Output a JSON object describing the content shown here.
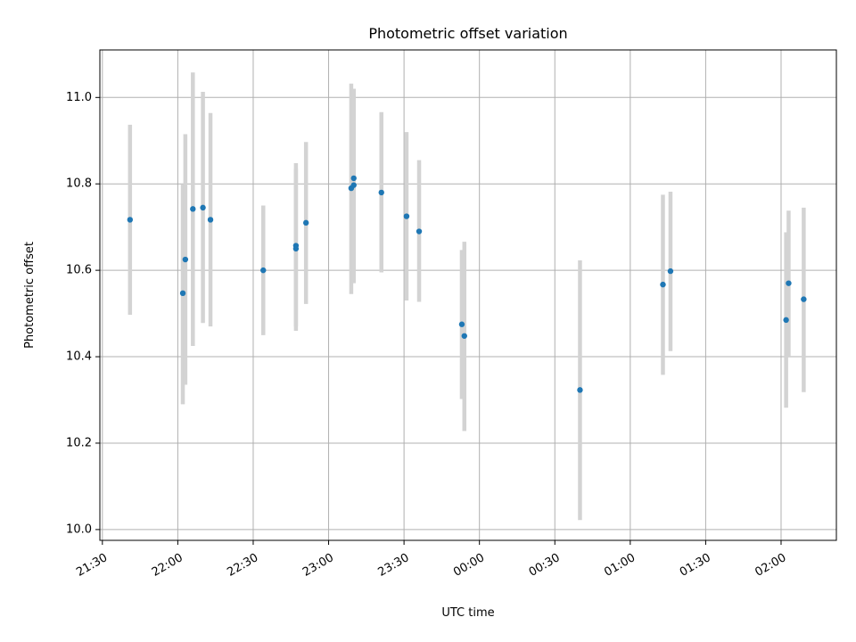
{
  "chart_data": {
    "type": "scatter",
    "title": "Photometric offset variation",
    "xlabel": "UTC time",
    "ylabel": "Photometric offset",
    "x_ticks": [
      "21:30",
      "22:00",
      "22:30",
      "23:00",
      "23:30",
      "00:00",
      "00:30",
      "01:00",
      "01:30",
      "02:00"
    ],
    "x_tick_minutes": [
      0,
      30,
      60,
      90,
      120,
      150,
      180,
      210,
      240,
      270
    ],
    "xlim": [
      -1,
      292
    ],
    "y_ticks": [
      "10.0",
      "10.2",
      "10.4",
      "10.6",
      "10.8",
      "11.0"
    ],
    "y_tick_values": [
      10.0,
      10.2,
      10.4,
      10.6,
      10.8,
      11.0
    ],
    "ylim": [
      9.975,
      11.11
    ],
    "grid": true,
    "marker_color": "#1f77b4",
    "errorbar_color": "#d3d3d3",
    "x_note": "x values are UTC clock times",
    "points": [
      {
        "x": "21:41",
        "y": 10.717,
        "low": 10.497,
        "high": 10.937
      },
      {
        "x": "22:02",
        "y": 10.547,
        "low": 10.29,
        "high": 10.8
      },
      {
        "x": "22:03",
        "y": 10.625,
        "low": 10.335,
        "high": 10.915
      },
      {
        "x": "22:06",
        "y": 10.742,
        "low": 10.425,
        "high": 11.058
      },
      {
        "x": "22:10",
        "y": 10.745,
        "low": 10.478,
        "high": 11.013
      },
      {
        "x": "22:13",
        "y": 10.717,
        "low": 10.47,
        "high": 10.964
      },
      {
        "x": "22:34",
        "y": 10.6,
        "low": 10.45,
        "high": 10.75
      },
      {
        "x": "22:47",
        "y": 10.657,
        "low": 10.46,
        "high": 10.848
      },
      {
        "x": "22:47",
        "y": 10.65,
        "low": 10.47,
        "high": 10.835
      },
      {
        "x": "22:51",
        "y": 10.71,
        "low": 10.522,
        "high": 10.897
      },
      {
        "x": "23:09",
        "y": 10.79,
        "low": 10.545,
        "high": 11.032
      },
      {
        "x": "23:10",
        "y": 10.797,
        "low": 10.57,
        "high": 11.02
      },
      {
        "x": "23:10",
        "y": 10.813,
        "low": 10.6,
        "high": 11.02
      },
      {
        "x": "23:21",
        "y": 10.78,
        "low": 10.595,
        "high": 10.966
      },
      {
        "x": "23:31",
        "y": 10.725,
        "low": 10.53,
        "high": 10.92
      },
      {
        "x": "23:36",
        "y": 10.69,
        "low": 10.527,
        "high": 10.855
      },
      {
        "x": "23:53",
        "y": 10.475,
        "low": 10.302,
        "high": 10.647
      },
      {
        "x": "23:54",
        "y": 10.448,
        "low": 10.228,
        "high": 10.666
      },
      {
        "x": "00:40",
        "y": 10.323,
        "low": 10.022,
        "high": 10.623
      },
      {
        "x": "01:13",
        "y": 10.567,
        "low": 10.358,
        "high": 10.775
      },
      {
        "x": "01:16",
        "y": 10.598,
        "low": 10.413,
        "high": 10.782
      },
      {
        "x": "02:02",
        "y": 10.485,
        "low": 10.282,
        "high": 10.688
      },
      {
        "x": "02:03",
        "y": 10.57,
        "low": 10.4,
        "high": 10.738
      },
      {
        "x": "02:09",
        "y": 10.533,
        "low": 10.318,
        "high": 10.745
      }
    ]
  }
}
